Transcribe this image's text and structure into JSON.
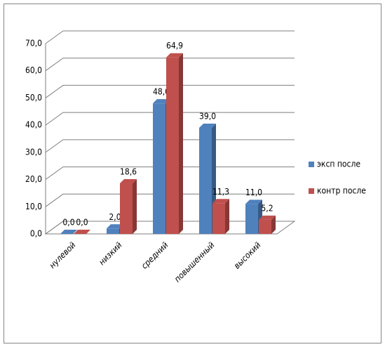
{
  "chart_data": {
    "type": "bar3d",
    "categories": [
      "нулевой",
      "низкий",
      "средний",
      "повышенный",
      "высокий"
    ],
    "series": [
      {
        "name": "эксп после",
        "color": "#4f81bd",
        "values": [
          0,
          2,
          48,
          39,
          11
        ],
        "value_labels": [
          "0,0",
          "2,0",
          "48,0",
          "39,0",
          "11,0"
        ]
      },
      {
        "name": "контр после",
        "color": "#c0504d",
        "values": [
          0,
          18.6,
          64.9,
          11.3,
          5.2
        ],
        "value_labels": [
          "0,0",
          "18,6",
          "64,9",
          "11,3",
          "5,2"
        ]
      }
    ],
    "ylim": [
      0,
      70
    ],
    "yticks": [
      {
        "value": 0,
        "label": "0,0"
      },
      {
        "value": 10,
        "label": "10,0"
      },
      {
        "value": 20,
        "label": "20,0"
      },
      {
        "value": 30,
        "label": "30,0"
      },
      {
        "value": 40,
        "label": "40,0"
      },
      {
        "value": 50,
        "label": "50,0"
      },
      {
        "value": 60,
        "label": "60,0"
      },
      {
        "value": 70,
        "label": "70,0"
      }
    ],
    "grid": true,
    "legend": "right"
  }
}
